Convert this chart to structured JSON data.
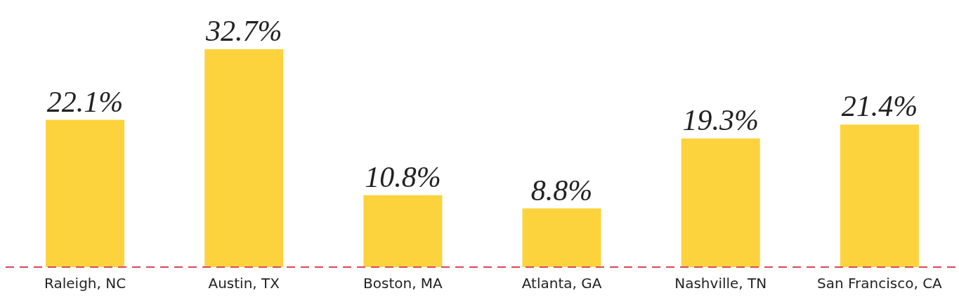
{
  "chart_data": {
    "type": "bar",
    "categories": [
      "Raleigh, NC",
      "Austin, TX",
      "Boston, MA",
      "Atlanta, GA",
      "Nashville, TN",
      "San Francisco, CA"
    ],
    "values": [
      22.1,
      32.7,
      10.8,
      8.8,
      19.3,
      21.4
    ],
    "value_labels": [
      "22.1%",
      "32.7%",
      "10.8%",
      "8.8%",
      "19.3%",
      "21.4%"
    ],
    "color": "#fcd33d",
    "ref_lines": [
      {
        "axis": "y",
        "value": 0,
        "color": "#d9475a",
        "line_style": "dashed"
      }
    ]
  }
}
